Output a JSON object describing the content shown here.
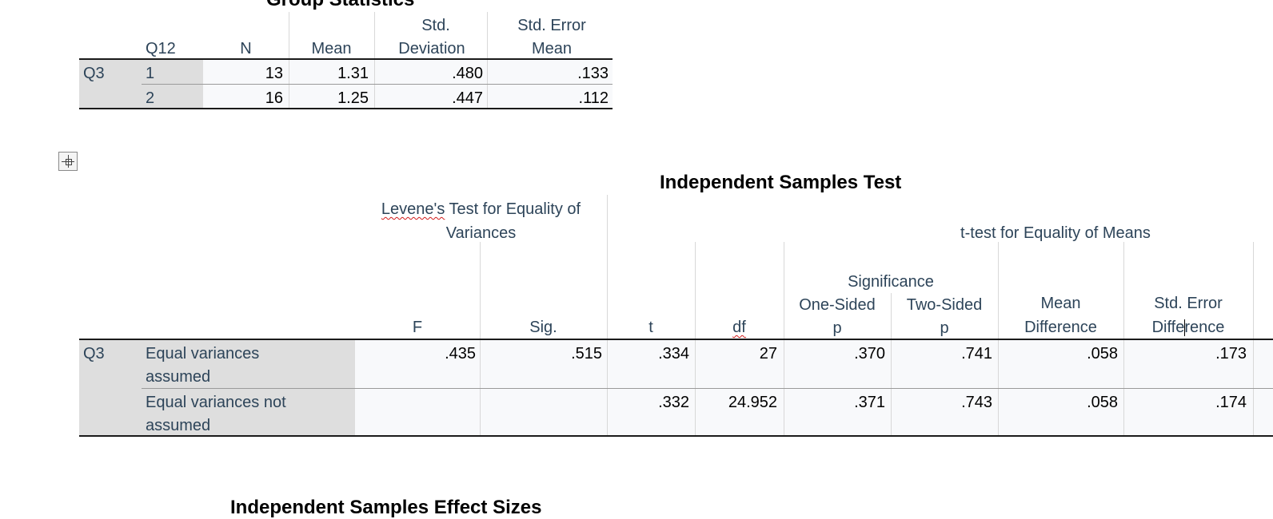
{
  "group_statistics": {
    "title": "Group Statistics",
    "headers": {
      "group": "Q12",
      "n": "N",
      "mean": "Mean",
      "std_dev_1": "Std.",
      "std_dev_2": "Deviation",
      "std_err_1": "Std. Error",
      "std_err_2": "Mean"
    },
    "variable": "Q3",
    "rows": [
      {
        "group": "1",
        "n": "13",
        "mean": "1.31",
        "std_dev": ".480",
        "std_err": ".133"
      },
      {
        "group": "2",
        "n": "16",
        "mean": "1.25",
        "std_dev": ".447",
        "std_err": ".112"
      }
    ]
  },
  "independent_samples_test": {
    "title": "Independent Samples Test",
    "levene_header_1_word": "Levene's",
    "levene_header_1_rest": " Test for Equality of",
    "levene_header_2": "Variances",
    "ttest_header": "t-test for Equality of Means",
    "significance": "Significance",
    "columns": {
      "f": "F",
      "sig": "Sig.",
      "t": "t",
      "df": "df",
      "one_sided_1": "One-Sided",
      "one_sided_2": "p",
      "two_sided_1": "Two-Sided",
      "two_sided_2": "p",
      "mean_diff_1": "Mean",
      "mean_diff_2": "Difference",
      "se_diff_1": "Std. Error",
      "se_diff_2": "Difference"
    },
    "variable": "Q3",
    "rows": [
      {
        "label_1": "Equal variances",
        "label_2": "assumed",
        "f": ".435",
        "sig": ".515",
        "t": ".334",
        "df": "27",
        "one_sided": ".370",
        "two_sided": ".741",
        "mean_diff": ".058",
        "se_diff": ".173"
      },
      {
        "label_1": "Equal variances not",
        "label_2": "assumed",
        "f": "",
        "sig": "",
        "t": ".332",
        "df": "24.952",
        "one_sided": ".371",
        "two_sided": ".743",
        "mean_diff": ".058",
        "se_diff": ".174"
      }
    ]
  },
  "effect_sizes": {
    "title": "Independent Samples Effect Sizes"
  },
  "icons": {
    "expand": "expand-move-icon"
  }
}
